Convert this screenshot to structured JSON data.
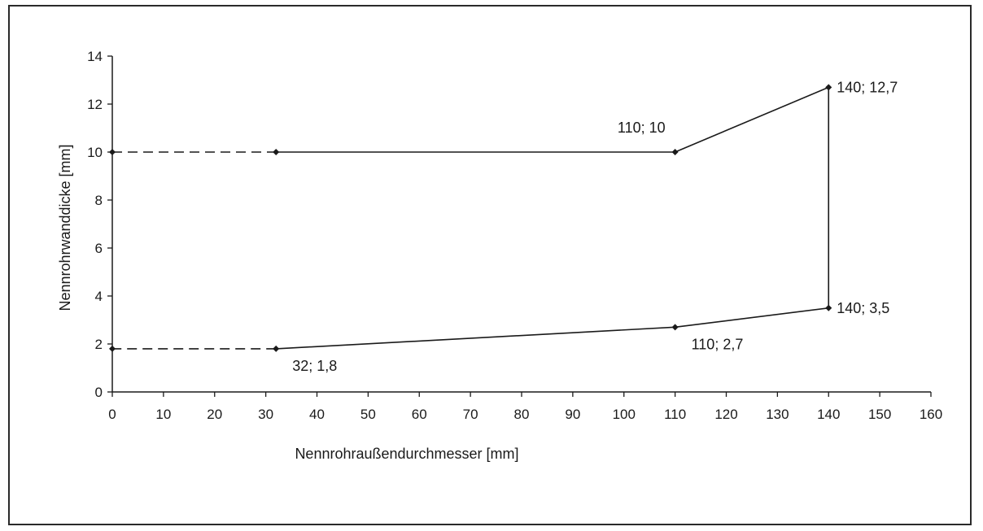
{
  "chart_data": {
    "type": "line",
    "xlabel": "Nennrohraußendurchmesser [mm]",
    "ylabel": "Nennrohrwanddicke [mm]",
    "xlim": [
      0,
      160
    ],
    "ylim": [
      0,
      14
    ],
    "x_ticks": [
      0,
      10,
      20,
      30,
      40,
      50,
      60,
      70,
      80,
      90,
      100,
      110,
      120,
      130,
      140,
      150,
      160
    ],
    "y_ticks": [
      0,
      2,
      4,
      6,
      8,
      10,
      12,
      14
    ],
    "grid": false,
    "legend": "none",
    "line_color": "#1a1a1a",
    "series": [
      {
        "points": [
          [
            0,
            10
          ],
          [
            32,
            10
          ],
          [
            110,
            10
          ],
          [
            140,
            12.7
          ],
          [
            140,
            3.5
          ],
          [
            110,
            2.7
          ],
          [
            32,
            1.8
          ],
          [
            0,
            1.8
          ]
        ],
        "segment_styles": [
          "dashed",
          "solid",
          "solid",
          "solid",
          "solid",
          "solid",
          "dashed"
        ]
      }
    ],
    "annotations": [
      {
        "x": 110,
        "y": 10,
        "text": "110; 10",
        "position": "above-left"
      },
      {
        "x": 140,
        "y": 12.7,
        "text": "140; 12,7",
        "position": "right"
      },
      {
        "x": 140,
        "y": 3.5,
        "text": "140; 3,5",
        "position": "right"
      },
      {
        "x": 110,
        "y": 2.7,
        "text": "110; 2,7",
        "position": "below-right"
      },
      {
        "x": 32,
        "y": 1.8,
        "text": "32; 1,8",
        "position": "below-right"
      }
    ]
  }
}
